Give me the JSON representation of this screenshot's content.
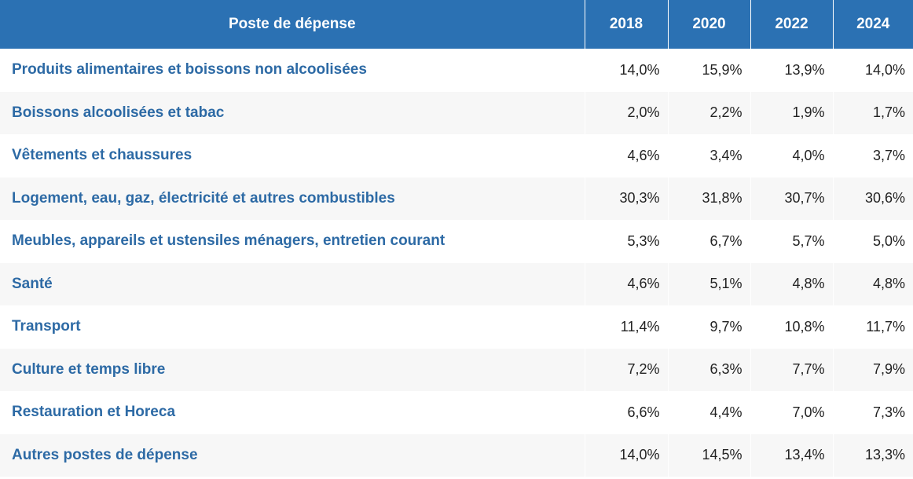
{
  "table": {
    "header": [
      "Poste de dépense",
      "2018",
      "2020",
      "2022",
      "2024"
    ],
    "rows": [
      [
        "Produits alimentaires et boissons non alcoolisées",
        "14,0%",
        "15,9%",
        "13,9%",
        "14,0%"
      ],
      [
        "Boissons alcoolisées et tabac",
        "2,0%",
        "2,2%",
        "1,9%",
        "1,7%"
      ],
      [
        "Vêtements et chaussures",
        "4,6%",
        "3,4%",
        "4,0%",
        "3,7%"
      ],
      [
        "Logement, eau, gaz, électricité et autres combustibles",
        "30,3%",
        "31,8%",
        "30,7%",
        "30,6%"
      ],
      [
        "Meubles, appareils et ustensiles ménagers, entretien courant",
        "5,3%",
        "6,7%",
        "5,7%",
        "5,0%"
      ],
      [
        "Santé",
        "4,6%",
        "5,1%",
        "4,8%",
        "4,8%"
      ],
      [
        "Transport",
        "11,4%",
        "9,7%",
        "10,8%",
        "11,7%"
      ],
      [
        "Culture et temps libre",
        "7,2%",
        "6,3%",
        "7,7%",
        "7,9%"
      ],
      [
        "Restauration et Horeca",
        "6,6%",
        "4,4%",
        "7,0%",
        "7,3%"
      ],
      [
        "Autres postes de dépense",
        "14,0%",
        "14,5%",
        "13,4%",
        "13,3%"
      ]
    ]
  }
}
